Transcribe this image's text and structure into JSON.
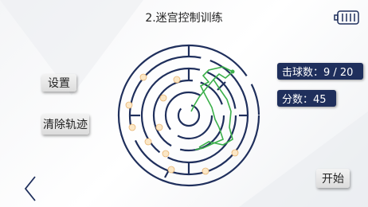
{
  "header": {
    "title": "2.迷宫控制训练"
  },
  "buttons": [
    {
      "label": "设置"
    },
    {
      "label": "清除轨迹"
    },
    {
      "label": "开始"
    }
  ],
  "stats": [
    {
      "label": "击球数：9 / 20"
    },
    {
      "label": "分数：45"
    }
  ]
}
